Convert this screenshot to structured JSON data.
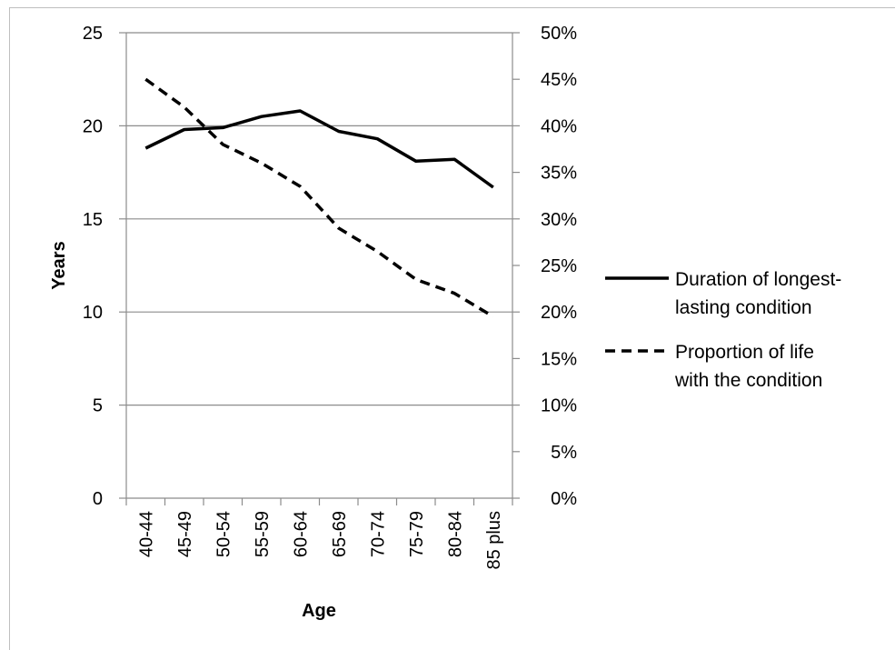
{
  "chart_data": {
    "type": "line",
    "xlabel": "Age",
    "ylabel": "Years",
    "categories": [
      "40-44",
      "45-49",
      "50-54",
      "55-59",
      "60-64",
      "65-69",
      "70-74",
      "75-79",
      "80-84",
      "85 plus"
    ],
    "y_ticks": [
      "0",
      "5",
      "10",
      "15",
      "20",
      "25"
    ],
    "y2_ticks": [
      "0%",
      "5%",
      "10%",
      "15%",
      "20%",
      "25%",
      "30%",
      "35%",
      "40%",
      "45%",
      "50%"
    ],
    "ylim": [
      0,
      25
    ],
    "y2lim": [
      0,
      0.5
    ],
    "grid": "horizontal",
    "legend": "right",
    "series": [
      {
        "name": "Duration of longest-lasting condition",
        "legend_lines": [
          "Duration of longest-",
          "lasting condition"
        ],
        "axis": "left",
        "style": "solid",
        "color": "#000000",
        "values": [
          18.8,
          19.8,
          19.9,
          20.5,
          20.8,
          19.7,
          19.3,
          18.1,
          18.2,
          16.7
        ]
      },
      {
        "name": "Proportion of life with the condition",
        "legend_lines": [
          "Proportion of life",
          "with the condition"
        ],
        "axis": "right",
        "style": "dashed",
        "color": "#000000",
        "values": [
          0.45,
          0.42,
          0.38,
          0.36,
          0.335,
          0.29,
          0.265,
          0.235,
          0.22,
          0.195
        ]
      }
    ]
  }
}
